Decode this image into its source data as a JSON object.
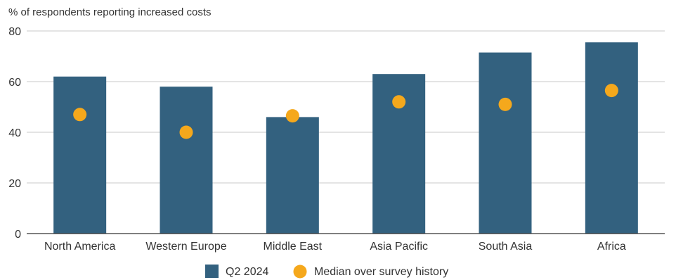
{
  "chart_data": {
    "type": "bar",
    "ylabel": "% of respondents reporting increased costs",
    "ylim": [
      0,
      80
    ],
    "yticks": [
      0,
      20,
      40,
      60,
      80
    ],
    "grid": true,
    "categories": [
      "North America",
      "Western Europe",
      "Middle East",
      "Asia Pacific",
      "South Asia",
      "Africa"
    ],
    "series": [
      {
        "name": "Q2 2024",
        "kind": "bar",
        "color": "#33617f",
        "values": [
          62,
          58,
          46,
          63,
          71.5,
          75.5
        ]
      },
      {
        "name": "Median over survey history",
        "kind": "dot",
        "color": "#f5a81c",
        "values": [
          47,
          40,
          46.5,
          52,
          51,
          56.5
        ]
      }
    ],
    "legend_position": "bottom-center"
  }
}
